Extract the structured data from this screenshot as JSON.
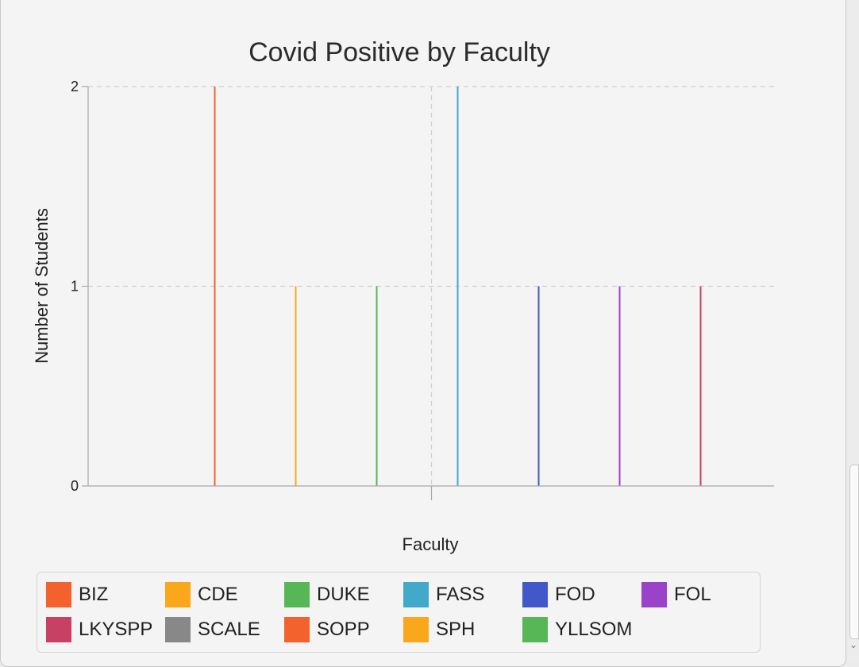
{
  "chart_data": {
    "type": "bar",
    "title": "Covid Positive by Faculty",
    "xlabel": "Faculty",
    "ylabel": "Number of Students",
    "ylim": [
      0,
      2
    ],
    "yticks": [
      "0",
      "1",
      "2"
    ],
    "grid": true,
    "legend_position": "bottom",
    "categories": [
      "BIZ",
      "CDE",
      "DUKE",
      "FASS",
      "FOD",
      "FOL",
      "LKYSPP",
      "SCALE",
      "SOPP",
      "SPH",
      "YLLSOM"
    ],
    "values": [
      2,
      1,
      1,
      2,
      1,
      1,
      1,
      0,
      0,
      0,
      0
    ],
    "colors": [
      "#f3622d",
      "#fba71b",
      "#57b757",
      "#41a9c9",
      "#4258c9",
      "#9a42c8",
      "#c84164",
      "#888888",
      "#f3622d",
      "#fba71b",
      "#57b757"
    ]
  }
}
